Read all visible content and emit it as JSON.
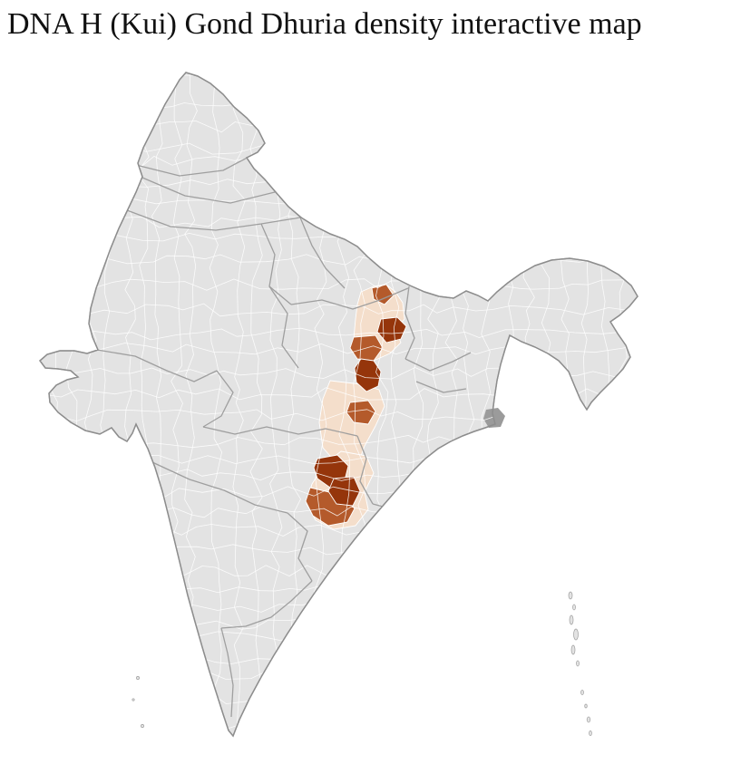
{
  "page": {
    "title": "DNA H (Kui) Gond Dhuria density interactive map",
    "background": "#ffffff"
  },
  "map": {
    "label": "India districts density choropleth",
    "base_fill": "#e3e3e3",
    "district_border_color": "#ffffff",
    "state_border_color": "#9b9b9b",
    "outline_color": "#8d8d8d",
    "delta_fill": "#9b9b9b",
    "island_fill": "#e3e3e3",
    "island_stroke": "#9e9e9e",
    "density_scale": {
      "low": "#f4decb",
      "medium": "#b45a2b",
      "high": "#95350b"
    },
    "regions": [
      {
        "id": "r1",
        "density": "low"
      },
      {
        "id": "r2",
        "density": "medium"
      },
      {
        "id": "r3",
        "density": "high"
      },
      {
        "id": "r4",
        "density": "medium"
      },
      {
        "id": "r5",
        "density": "high"
      },
      {
        "id": "r6",
        "density": "low"
      },
      {
        "id": "r7",
        "density": "medium"
      },
      {
        "id": "r8",
        "density": "low"
      },
      {
        "id": "r9",
        "density": "high"
      },
      {
        "id": "r10",
        "density": "high"
      },
      {
        "id": "r11",
        "density": "medium"
      }
    ]
  }
}
